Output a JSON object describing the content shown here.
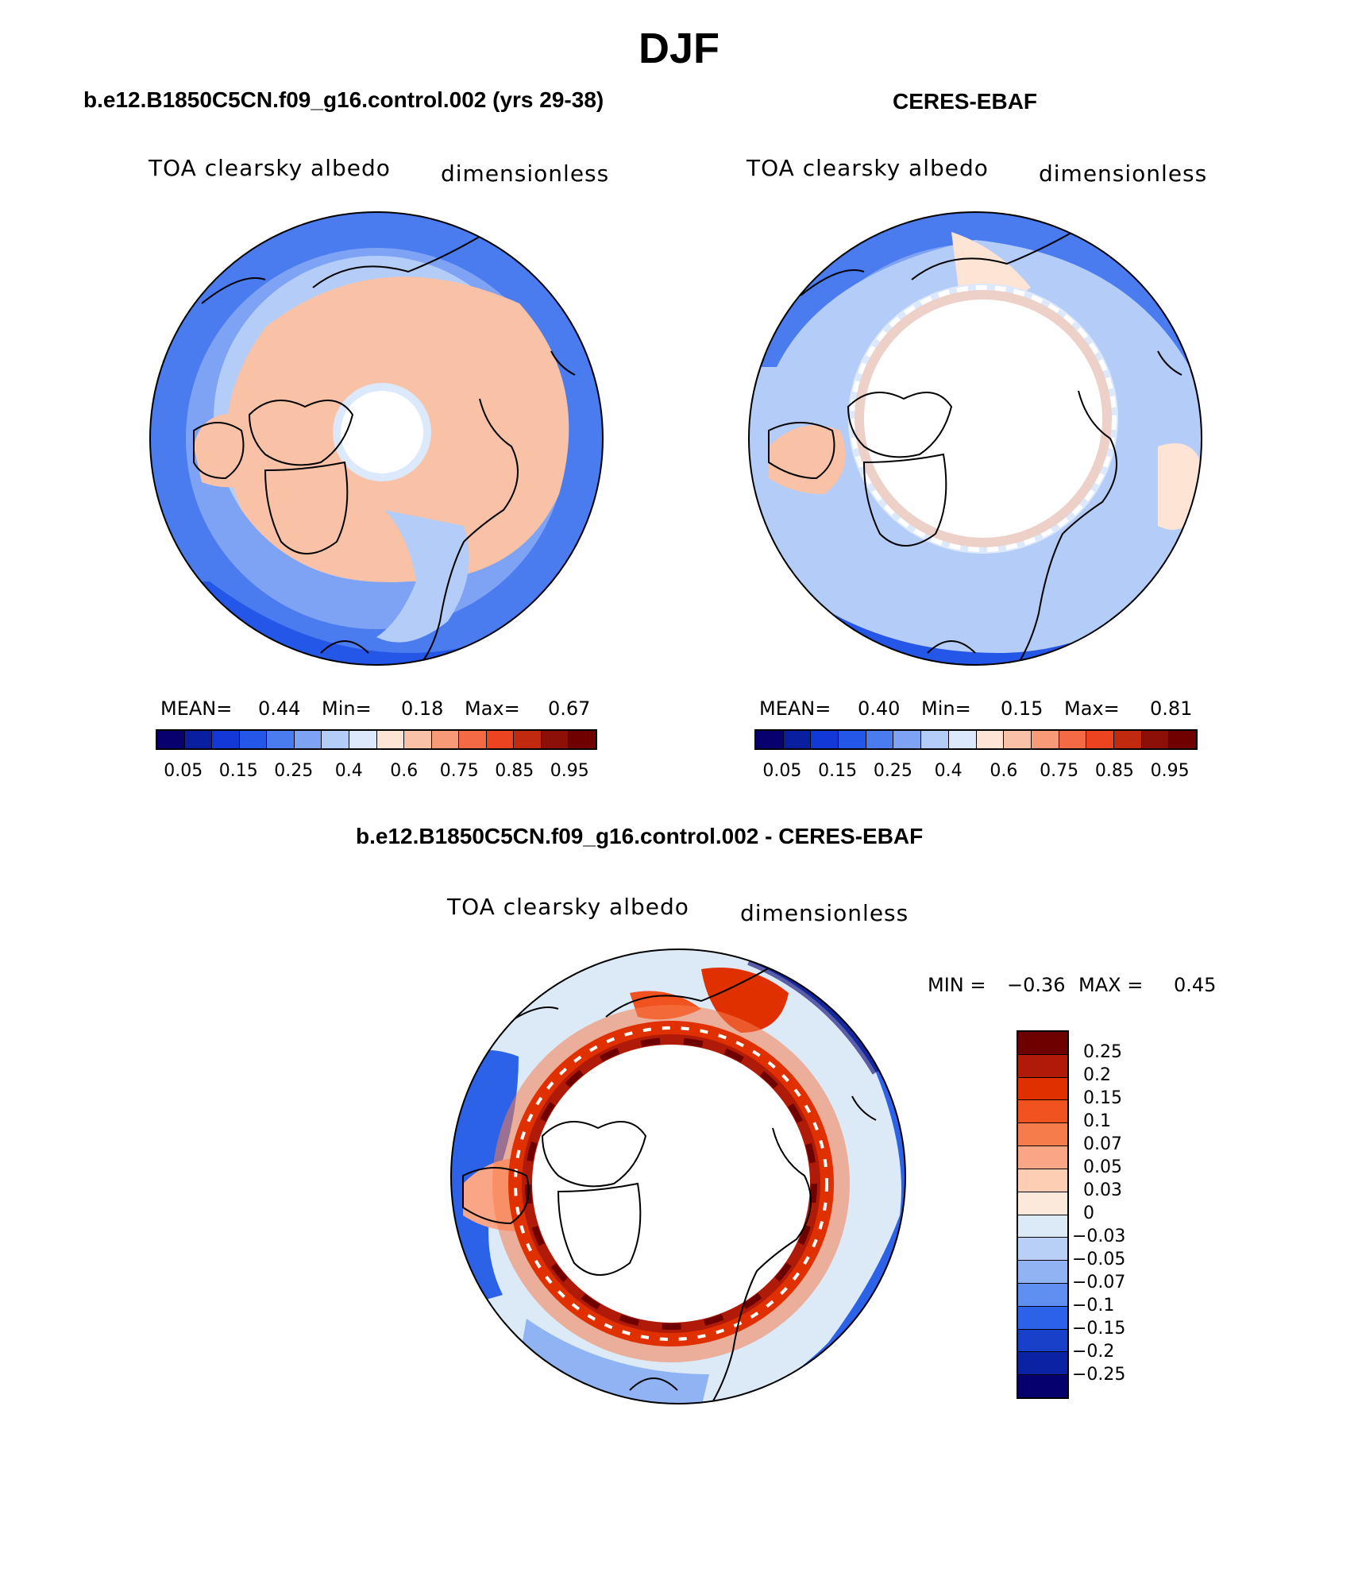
{
  "title": "DJF",
  "panels": [
    {
      "title": "b.e12.B1850C5CN.f09_g16.control.002 (yrs 29-38)",
      "variable": "TOA clearsky albedo",
      "units": "dimensionless",
      "stats": {
        "mean_label": "MEAN=",
        "mean": "0.44",
        "min_label": "Min=",
        "min": "0.18",
        "max_label": "Max=",
        "max": "0.67"
      },
      "colorbar_ticks": [
        "0.05",
        "0.15",
        "0.25",
        "0.4",
        "0.6",
        "0.75",
        "0.85",
        "0.95"
      ]
    },
    {
      "title": "CERES-EBAF",
      "variable": "TOA clearsky albedo",
      "units": "dimensionless",
      "stats": {
        "mean_label": "MEAN=",
        "mean": "0.40",
        "min_label": "Min=",
        "min": "0.15",
        "max_label": "Max=",
        "max": "0.81"
      },
      "colorbar_ticks": [
        "0.05",
        "0.15",
        "0.25",
        "0.4",
        "0.6",
        "0.75",
        "0.85",
        "0.95"
      ]
    }
  ],
  "difference": {
    "title": "b.e12.B1850C5CN.f09_g16.control.002 - CERES-EBAF",
    "variable": "TOA clearsky albedo",
    "units": "dimensionless",
    "stats": {
      "min_label": "MIN =",
      "min": "−0.36",
      "max_label": "MAX =",
      "max": "0.45"
    },
    "colorbar_labels": [
      "0.25",
      "0.2",
      "0.15",
      "0.1",
      "0.07",
      "0.05",
      "0.03",
      "0",
      "−0.03",
      "−0.05",
      "−0.07",
      "−0.1",
      "−0.15",
      "−0.2",
      "−0.25"
    ]
  },
  "palette": {
    "abs": [
      "#08006e",
      "#0a1fa0",
      "#1238d6",
      "#2456e8",
      "#4a7cf0",
      "#7ea3f4",
      "#b4ccf8",
      "#dce8fb",
      "#fde4d4",
      "#f9c2a6",
      "#f69a78",
      "#f36a44",
      "#ec4420",
      "#c22a10",
      "#8c1008",
      "#700000"
    ],
    "diff": [
      "#6e0000",
      "#b01a08",
      "#e03000",
      "#f05220",
      "#f67c4c",
      "#faa686",
      "#fdcdb4",
      "#fde8dc",
      "#dceaf8",
      "#b9d0f6",
      "#8fb3f3",
      "#5f8ff0",
      "#2c62e8",
      "#1840c8",
      "#0a22a4",
      "#06006e"
    ]
  }
}
